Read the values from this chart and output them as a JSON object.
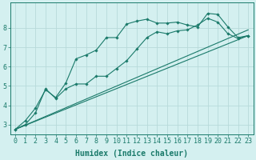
{
  "background_color": "#d4f0f0",
  "grid_color": "#b8dada",
  "line_color": "#1a7a6a",
  "marker_color": "#1a7a6a",
  "xlabel": "Humidex (Indice chaleur)",
  "xlabel_fontsize": 7,
  "tick_fontsize": 6,
  "xlim": [
    -0.5,
    23.5
  ],
  "ylim": [
    2.5,
    9.3
  ],
  "yticks": [
    3,
    4,
    5,
    6,
    7,
    8
  ],
  "xticks": [
    0,
    1,
    2,
    3,
    4,
    5,
    6,
    7,
    8,
    9,
    10,
    11,
    12,
    13,
    14,
    15,
    16,
    17,
    18,
    19,
    20,
    21,
    22,
    23
  ],
  "line1_x": [
    0,
    1,
    2,
    3,
    4,
    5,
    6,
    7,
    8,
    9,
    10,
    11,
    12,
    13,
    14,
    15,
    16,
    17,
    18,
    19,
    20,
    21,
    22,
    23
  ],
  "line1_y": [
    2.75,
    3.2,
    3.85,
    4.8,
    4.4,
    5.15,
    6.4,
    6.6,
    6.85,
    7.5,
    7.5,
    8.2,
    8.35,
    8.45,
    8.25,
    8.25,
    8.3,
    8.15,
    8.05,
    8.75,
    8.7,
    8.05,
    7.5,
    7.6
  ],
  "line2_x": [
    0,
    1,
    2,
    3,
    4,
    5,
    6,
    7,
    8,
    9,
    10,
    11,
    12,
    13,
    14,
    15,
    16,
    17,
    18,
    19,
    20,
    21,
    22,
    23
  ],
  "line2_y": [
    2.75,
    3.0,
    3.6,
    4.85,
    4.35,
    4.85,
    5.1,
    5.1,
    5.5,
    5.5,
    5.9,
    6.3,
    6.9,
    7.5,
    7.8,
    7.7,
    7.85,
    7.9,
    8.15,
    8.5,
    8.3,
    7.7,
    7.45,
    7.6
  ],
  "line3_x": [
    0,
    23
  ],
  "line3_y": [
    2.75,
    7.6
  ],
  "line4_x": [
    0,
    23
  ],
  "line4_y": [
    2.75,
    7.9
  ]
}
